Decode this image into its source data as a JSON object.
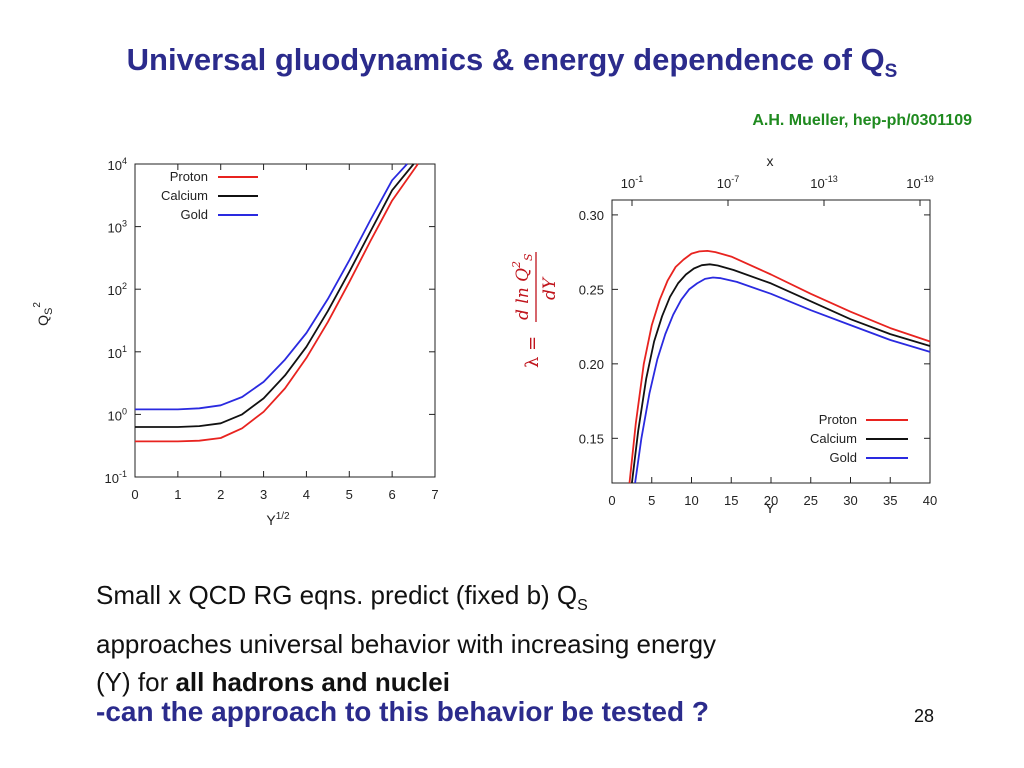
{
  "slide": {
    "title_main": "Universal gluodynamics & energy dependence of Q",
    "title_sub": "S",
    "reference": "A.H. Mueller, hep-ph/0301109",
    "body_part1": "Small x QCD RG eqns. predict (fixed b)  Q",
    "body_sub": "S",
    "body_line2": "approaches universal behavior with increasing energy",
    "body_line3_prefix": "(Y) for ",
    "body_line3_bold": "all hadrons and nuclei",
    "question": "-can the approach to this behavior be tested ?",
    "page_number": "28",
    "lambda_label": "λ ="
  },
  "colors": {
    "proton": "#e8231f",
    "calcium": "#111111",
    "gold": "#2a2ae0"
  },
  "chart_data": [
    {
      "type": "line",
      "ylabel": "Qs²",
      "ylabel_main": "Q",
      "ylabel_sub": "S",
      "ylabel_sup": "2",
      "xlabel": "Y",
      "xlabel_sup": "1/2",
      "x_scale": "linear",
      "y_scale": "log",
      "xlim": [
        0,
        7
      ],
      "ylim": [
        0.1,
        10000
      ],
      "x_ticks": [
        "0",
        "1",
        "2",
        "3",
        "4",
        "5",
        "6",
        "7"
      ],
      "y_ticks": [
        {
          "base": "10",
          "exp": "-1"
        },
        {
          "base": "10",
          "exp": "0"
        },
        {
          "base": "10",
          "exp": "1"
        },
        {
          "base": "10",
          "exp": "2"
        },
        {
          "base": "10",
          "exp": "3"
        },
        {
          "base": "10",
          "exp": "4"
        }
      ],
      "legend_position": "top-left",
      "series": [
        {
          "name": "Proton",
          "color": "#e8231f",
          "x": [
            0,
            0.5,
            1,
            1.5,
            2,
            2.5,
            3,
            3.5,
            4,
            4.5,
            5,
            5.5,
            6,
            6.6
          ],
          "y": [
            0.37,
            0.37,
            0.37,
            0.38,
            0.42,
            0.6,
            1.1,
            2.6,
            8,
            30,
            130,
            600,
            2600,
            10000
          ]
        },
        {
          "name": "Calcium",
          "color": "#111111",
          "x": [
            0,
            0.5,
            1,
            1.5,
            2,
            2.5,
            3,
            3.5,
            4,
            4.5,
            5,
            5.5,
            6,
            6.5
          ],
          "y": [
            0.63,
            0.63,
            0.63,
            0.65,
            0.72,
            1.0,
            1.8,
            4.2,
            12,
            45,
            190,
            850,
            3800,
            10000
          ]
        },
        {
          "name": "Gold",
          "color": "#2a2ae0",
          "x": [
            0,
            0.5,
            1,
            1.5,
            2,
            2.5,
            3,
            3.5,
            4,
            4.5,
            5,
            5.5,
            6,
            6.35
          ],
          "y": [
            1.2,
            1.2,
            1.2,
            1.25,
            1.4,
            1.9,
            3.3,
            7.5,
            20,
            70,
            290,
            1300,
            5500,
            10000
          ]
        }
      ]
    },
    {
      "type": "line",
      "xlabel": "Y",
      "top_xlabel": "x",
      "xlim": [
        0,
        40
      ],
      "ylim": [
        0.12,
        0.31
      ],
      "x_ticks": [
        "0",
        "5",
        "10",
        "15",
        "20",
        "25",
        "30",
        "35",
        "40"
      ],
      "y_ticks": [
        "0.15",
        "0.20",
        "0.25",
        "0.30"
      ],
      "top_ticks": [
        {
          "base": "10",
          "exp": "-1"
        },
        {
          "base": "10",
          "exp": "-7"
        },
        {
          "base": "10",
          "exp": "-13"
        },
        {
          "base": "10",
          "exp": "-19"
        }
      ],
      "legend_position": "bottom-right",
      "series": [
        {
          "name": "Proton",
          "color": "#e8231f",
          "x": [
            2.2,
            3,
            4,
            5,
            6,
            7,
            8,
            9,
            10,
            11,
            12,
            13,
            15,
            20,
            25,
            30,
            35,
            40
          ],
          "y": [
            0.12,
            0.16,
            0.2,
            0.226,
            0.243,
            0.256,
            0.265,
            0.27,
            0.274,
            0.2755,
            0.2758,
            0.275,
            0.272,
            0.26,
            0.247,
            0.235,
            0.224,
            0.215
          ]
        },
        {
          "name": "Calcium",
          "color": "#111111",
          "x": [
            2.5,
            3.3,
            4.3,
            5.3,
            6.3,
            7.3,
            8.3,
            9.3,
            10.3,
            11.3,
            12.3,
            13.3,
            15.3,
            20,
            25,
            30,
            35,
            40
          ],
          "y": [
            0.12,
            0.155,
            0.19,
            0.215,
            0.232,
            0.245,
            0.254,
            0.26,
            0.264,
            0.2662,
            0.2668,
            0.266,
            0.263,
            0.254,
            0.242,
            0.23,
            0.22,
            0.212
          ]
        },
        {
          "name": "Gold",
          "color": "#2a2ae0",
          "x": [
            2.9,
            3.7,
            4.7,
            5.7,
            6.7,
            7.7,
            8.7,
            9.7,
            10.7,
            11.7,
            12.7,
            13.7,
            15.7,
            20,
            25,
            30,
            35,
            40
          ],
          "y": [
            0.12,
            0.15,
            0.18,
            0.203,
            0.22,
            0.233,
            0.243,
            0.25,
            0.254,
            0.257,
            0.258,
            0.2575,
            0.255,
            0.247,
            0.236,
            0.226,
            0.216,
            0.208
          ]
        }
      ]
    }
  ]
}
